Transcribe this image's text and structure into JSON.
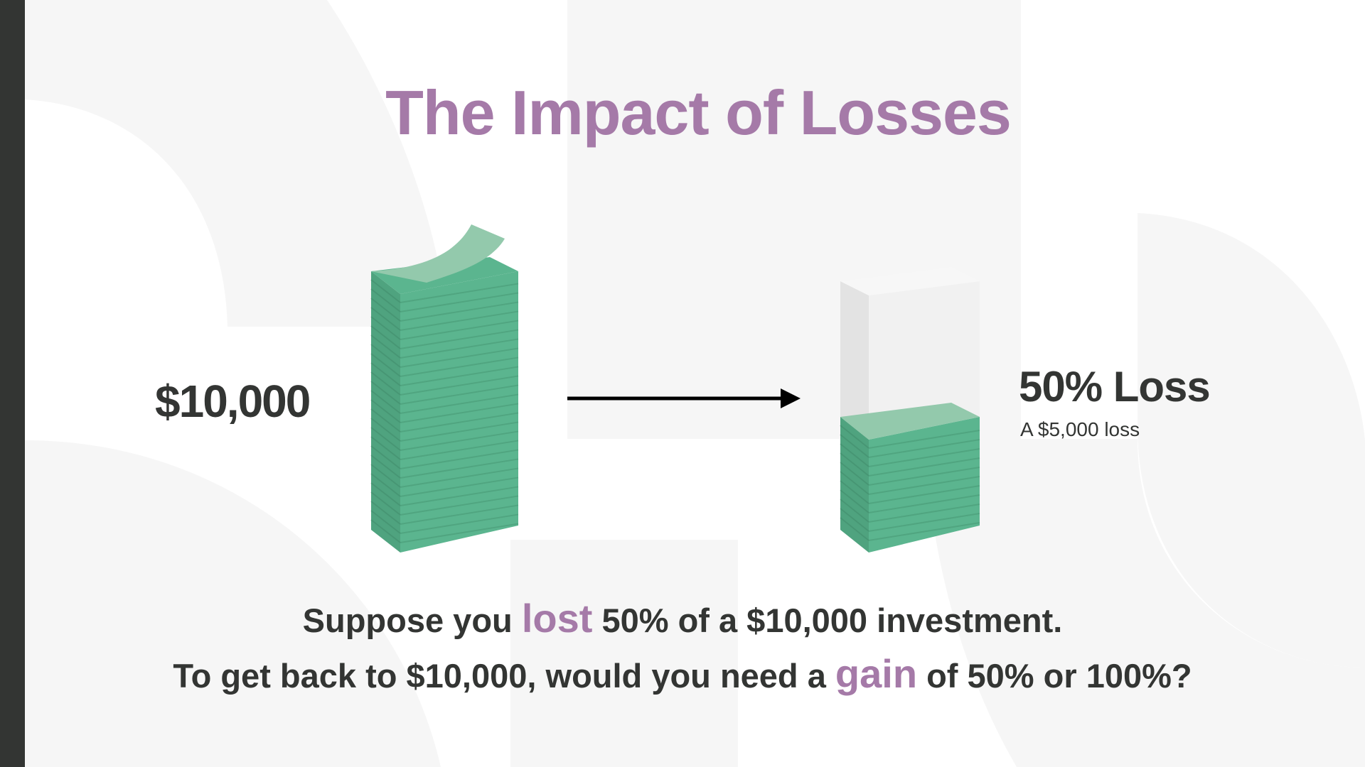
{
  "title": "The Impact of Losses",
  "start_amount": "$10,000",
  "result": {
    "label": "50% Loss",
    "sublabel": "A $5,000 loss",
    "remaining_fraction": 0.5
  },
  "question": {
    "line1": {
      "pre": "Suppose you",
      "highlight": "lost",
      "post": "50% of a $10,000 investment."
    },
    "line2": {
      "pre": "To get back to $10,000, would you need a",
      "highlight": "gain",
      "post": "of 50% or 100%?"
    }
  },
  "colors": {
    "accent": "#a57aa8",
    "text": "#333533",
    "money_green": "#5bb58f",
    "money_light": "#93c9ac",
    "background_shape": "#f6f6f6",
    "sidebar": "#333533"
  },
  "icons": {
    "arrow": "arrow-right-icon",
    "money": "money-stack-icon"
  }
}
